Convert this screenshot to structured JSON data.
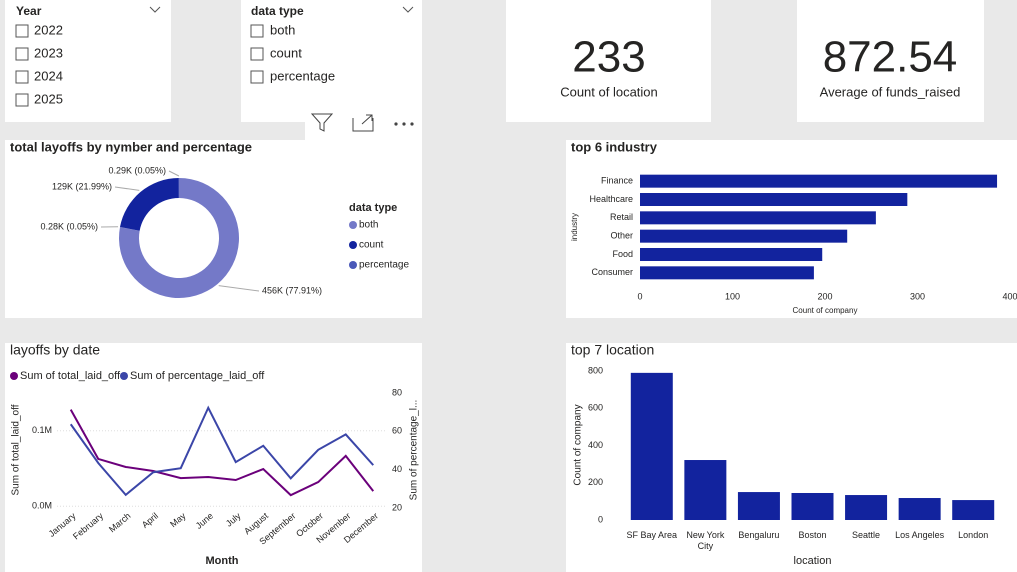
{
  "slicers": [
    {
      "title": "Year",
      "options": [
        "2022",
        "2023",
        "2024",
        "2025"
      ]
    },
    {
      "title": "data type",
      "options": [
        "both",
        "count",
        "percentage"
      ]
    }
  ],
  "cards": [
    {
      "value": 233,
      "label": "Count of location"
    },
    {
      "value": 872.54,
      "label": "Average of funds_raised"
    }
  ],
  "chart_data": [
    {
      "type": "pie",
      "title": "total layoffs by nymber and percentage",
      "legend_title": "data type",
      "categories": [
        "both",
        null,
        "count",
        "percentage"
      ],
      "values": [
        456000,
        280,
        129000,
        290
      ],
      "value_labels": [
        "456K (77.91%)",
        "0.28K (0.05%)",
        "129K (21.99%)",
        "0.29K (0.05%)"
      ],
      "colors": [
        "#7479c8",
        "#5a60b8",
        "#12239e",
        "#4a58b8"
      ]
    },
    {
      "type": "hbar",
      "title": "top 6 industry",
      "x_label": "Count of company",
      "y_label": "industry",
      "categories": [
        "Finance",
        "Healthcare",
        "Retail",
        "Other",
        "Food",
        "Consumer"
      ],
      "values": [
        386,
        289,
        255,
        224,
        197,
        188
      ],
      "color": "#12239e",
      "xlim": [
        0,
        400
      ],
      "xticks": [
        0,
        100,
        200,
        300,
        400
      ]
    },
    {
      "type": "line",
      "title": "layoffs by date",
      "x_label": "Month",
      "y_label": "Sum of total_laid_off",
      "y2_label": "Sum of percentage_l...",
      "categories": [
        "January",
        "February",
        "March",
        "April",
        "May",
        "June",
        "July",
        "August",
        "September",
        "October",
        "November",
        "December"
      ],
      "series": [
        {
          "name": "Sum of total_laid_off",
          "color": "#6b007b",
          "values": [
            128000,
            62700,
            52000,
            46700,
            37300,
            38700,
            34700,
            49300,
            14700,
            32000,
            66700,
            20000
          ]
        },
        {
          "name": "Sum of percentage_laid_off",
          "color": "#3b46a8",
          "axis": "y2",
          "values": [
            63.7,
            43.5,
            26.9,
            38.7,
            40.8,
            72.3,
            44,
            52.5,
            35.5,
            50.4,
            58.4,
            42.4
          ]
        }
      ],
      "ylim": [
        -5000,
        150000
      ],
      "yticks": [
        {
          "value": 0,
          "label": "0.0M"
        },
        {
          "value": 100000,
          "label": "0.1M"
        }
      ],
      "y2lim": [
        19,
        80
      ],
      "y2ticks": [
        20,
        40,
        60,
        80
      ],
      "grid": true
    },
    {
      "type": "bar",
      "title": "top 7 location",
      "x_label": "location",
      "y_label": "Count of company",
      "categories": [
        "SF Bay Area",
        "New York City",
        "Bengaluru",
        "Boston",
        "Seattle",
        "Los Angeles",
        "London"
      ],
      "values": [
        790,
        322,
        150,
        145,
        134,
        118,
        107
      ],
      "color": "#12239e",
      "ylim": [
        0,
        800
      ],
      "yticks": [
        0,
        200,
        400,
        600,
        800
      ]
    }
  ]
}
